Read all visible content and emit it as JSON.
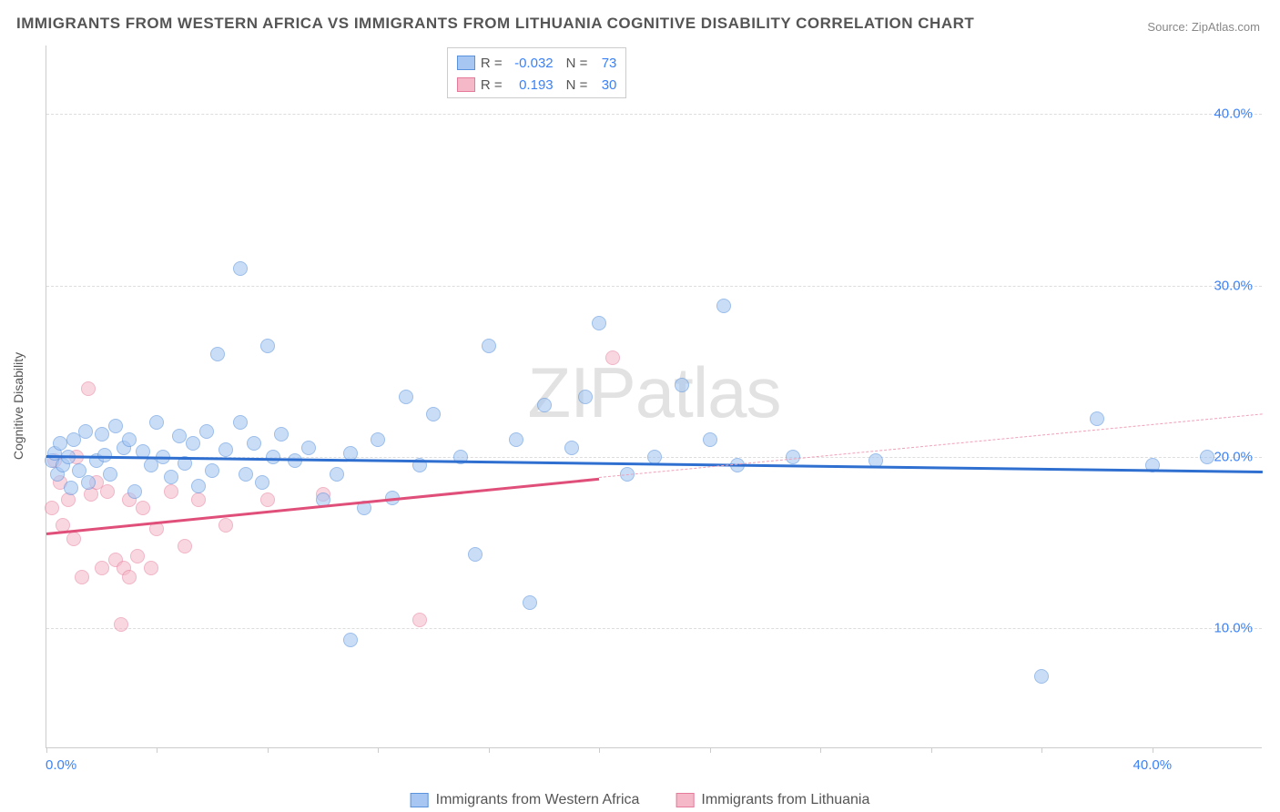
{
  "title": "IMMIGRANTS FROM WESTERN AFRICA VS IMMIGRANTS FROM LITHUANIA COGNITIVE DISABILITY CORRELATION CHART",
  "source_label": "Source:",
  "source_value": "ZipAtlas.com",
  "ylabel": "Cognitive Disability",
  "watermark": "ZIPatlas",
  "chart": {
    "type": "scatter",
    "xlim": [
      0,
      44
    ],
    "ylim": [
      3,
      44
    ],
    "x_ticks_minor": [
      0,
      4,
      8,
      12,
      16,
      20,
      24,
      28,
      32,
      36,
      40
    ],
    "y_gridlines": [
      10,
      20,
      30,
      40
    ],
    "y_tick_labels": [
      "10.0%",
      "20.0%",
      "30.0%",
      "40.0%"
    ],
    "x_tick_labels": {
      "left": "0.0%",
      "right": "40.0%"
    },
    "background_color": "#ffffff",
    "grid_color": "#dddddd",
    "axis_color": "#cccccc",
    "tick_label_color": "#3b82f6",
    "point_radius": 8,
    "series": [
      {
        "name": "Immigrants from Western Africa",
        "fill": "#a7c7f2",
        "stroke": "#5a93dd",
        "fill_opacity": 0.6,
        "R": "-0.032",
        "N": "73",
        "regression": {
          "x1": 0,
          "y1": 20.1,
          "x2": 44,
          "y2": 19.2,
          "color": "#2f6fd0",
          "width": 2.5
        },
        "points": [
          [
            0.2,
            19.8
          ],
          [
            0.3,
            20.2
          ],
          [
            0.4,
            19.0
          ],
          [
            0.5,
            20.8
          ],
          [
            0.6,
            19.5
          ],
          [
            0.8,
            20.0
          ],
          [
            0.9,
            18.2
          ],
          [
            1.0,
            21.0
          ],
          [
            1.2,
            19.2
          ],
          [
            1.4,
            21.5
          ],
          [
            1.5,
            18.5
          ],
          [
            1.8,
            19.8
          ],
          [
            2.0,
            21.3
          ],
          [
            2.1,
            20.1
          ],
          [
            2.3,
            19.0
          ],
          [
            2.5,
            21.8
          ],
          [
            2.8,
            20.5
          ],
          [
            3.0,
            21.0
          ],
          [
            3.2,
            18.0
          ],
          [
            3.5,
            20.3
          ],
          [
            3.8,
            19.5
          ],
          [
            4.0,
            22.0
          ],
          [
            4.2,
            20.0
          ],
          [
            4.5,
            18.8
          ],
          [
            4.8,
            21.2
          ],
          [
            5.0,
            19.6
          ],
          [
            5.3,
            20.8
          ],
          [
            5.5,
            18.3
          ],
          [
            5.8,
            21.5
          ],
          [
            6.0,
            19.2
          ],
          [
            6.2,
            26.0
          ],
          [
            6.5,
            20.4
          ],
          [
            7.0,
            22.0
          ],
          [
            7.0,
            31.0
          ],
          [
            7.2,
            19.0
          ],
          [
            7.5,
            20.8
          ],
          [
            7.8,
            18.5
          ],
          [
            8.0,
            26.5
          ],
          [
            8.2,
            20.0
          ],
          [
            8.5,
            21.3
          ],
          [
            9.0,
            19.8
          ],
          [
            9.5,
            20.5
          ],
          [
            10.0,
            17.5
          ],
          [
            10.5,
            19.0
          ],
          [
            11.0,
            20.2
          ],
          [
            11.0,
            9.3
          ],
          [
            11.5,
            17.0
          ],
          [
            12.0,
            21.0
          ],
          [
            12.5,
            17.6
          ],
          [
            13.0,
            23.5
          ],
          [
            13.5,
            19.5
          ],
          [
            14.0,
            22.5
          ],
          [
            15.0,
            20.0
          ],
          [
            15.5,
            14.3
          ],
          [
            16.0,
            26.5
          ],
          [
            17.0,
            21.0
          ],
          [
            17.5,
            11.5
          ],
          [
            18.0,
            23.0
          ],
          [
            19.0,
            20.5
          ],
          [
            19.5,
            23.5
          ],
          [
            20.0,
            27.8
          ],
          [
            21.0,
            19.0
          ],
          [
            22.0,
            20.0
          ],
          [
            23.0,
            24.2
          ],
          [
            24.0,
            21.0
          ],
          [
            24.5,
            28.8
          ],
          [
            25.0,
            19.5
          ],
          [
            27.0,
            20.0
          ],
          [
            30.0,
            19.8
          ],
          [
            36.0,
            7.2
          ],
          [
            38.0,
            22.2
          ],
          [
            40.0,
            19.5
          ],
          [
            42.0,
            20.0
          ]
        ]
      },
      {
        "name": "Immigrants from Lithuania",
        "fill": "#f5b8c8",
        "stroke": "#e57a9a",
        "fill_opacity": 0.55,
        "R": "0.193",
        "N": "30",
        "regression": {
          "x1": 0,
          "y1": 15.6,
          "x2": 20,
          "y2": 18.8,
          "color": "#e04f7a",
          "width": 2.5
        },
        "regression_dash": {
          "x1": 20,
          "y1": 18.8,
          "x2": 44,
          "y2": 22.5,
          "color": "#f0a0b8"
        },
        "points": [
          [
            0.2,
            17.0
          ],
          [
            0.3,
            19.8
          ],
          [
            0.5,
            18.5
          ],
          [
            0.6,
            16.0
          ],
          [
            0.8,
            17.5
          ],
          [
            1.0,
            15.2
          ],
          [
            1.1,
            20.0
          ],
          [
            1.3,
            13.0
          ],
          [
            1.5,
            24.0
          ],
          [
            1.6,
            17.8
          ],
          [
            1.8,
            18.5
          ],
          [
            2.0,
            13.5
          ],
          [
            2.2,
            18.0
          ],
          [
            2.5,
            14.0
          ],
          [
            2.7,
            10.2
          ],
          [
            2.8,
            13.5
          ],
          [
            3.0,
            13.0
          ],
          [
            3.0,
            17.5
          ],
          [
            3.3,
            14.2
          ],
          [
            3.5,
            17.0
          ],
          [
            3.8,
            13.5
          ],
          [
            4.0,
            15.8
          ],
          [
            4.5,
            18.0
          ],
          [
            5.0,
            14.8
          ],
          [
            5.5,
            17.5
          ],
          [
            6.5,
            16.0
          ],
          [
            8.0,
            17.5
          ],
          [
            10.0,
            17.8
          ],
          [
            13.5,
            10.5
          ],
          [
            20.5,
            25.8
          ]
        ]
      }
    ]
  },
  "legend_top": {
    "rows": [
      {
        "swatch_fill": "#a7c7f2",
        "swatch_stroke": "#5a93dd",
        "r": "-0.032",
        "n": "73"
      },
      {
        "swatch_fill": "#f5b8c8",
        "swatch_stroke": "#e57a9a",
        "r": "0.193",
        "n": "30"
      }
    ]
  },
  "legend_bottom": [
    {
      "swatch_fill": "#a7c7f2",
      "swatch_stroke": "#5a93dd",
      "label": "Immigrants from Western Africa"
    },
    {
      "swatch_fill": "#f5b8c8",
      "swatch_stroke": "#e57a9a",
      "label": "Immigrants from Lithuania"
    }
  ]
}
